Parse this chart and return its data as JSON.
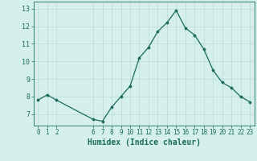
{
  "x": [
    0,
    1,
    2,
    6,
    7,
    8,
    9,
    10,
    11,
    12,
    13,
    14,
    15,
    16,
    17,
    18,
    19,
    20,
    21,
    22,
    23
  ],
  "y": [
    7.8,
    8.1,
    7.8,
    6.7,
    6.6,
    7.4,
    8.0,
    8.6,
    10.2,
    10.8,
    11.7,
    12.2,
    12.9,
    11.9,
    11.5,
    10.7,
    9.5,
    8.8,
    8.5,
    8.0,
    7.7
  ],
  "xlim": [
    -0.5,
    23.5
  ],
  "ylim": [
    6.35,
    13.4
  ],
  "xticks": [
    0,
    1,
    2,
    6,
    7,
    8,
    9,
    10,
    11,
    12,
    13,
    14,
    15,
    16,
    17,
    18,
    19,
    20,
    21,
    22,
    23
  ],
  "yticks": [
    7,
    8,
    9,
    10,
    11,
    12,
    13
  ],
  "xlabel": "Humidex (Indice chaleur)",
  "line_color": "#1a6b5a",
  "marker_color": "#1a6b5a",
  "bg_color": "#d4efec",
  "grid_color": "#b8dcd8",
  "axis_color": "#1a6b5a",
  "tick_label_color": "#1a6b5a",
  "xlabel_color": "#1a6b5a",
  "tick_fontsize": 5.5,
  "xlabel_fontsize": 7.0
}
